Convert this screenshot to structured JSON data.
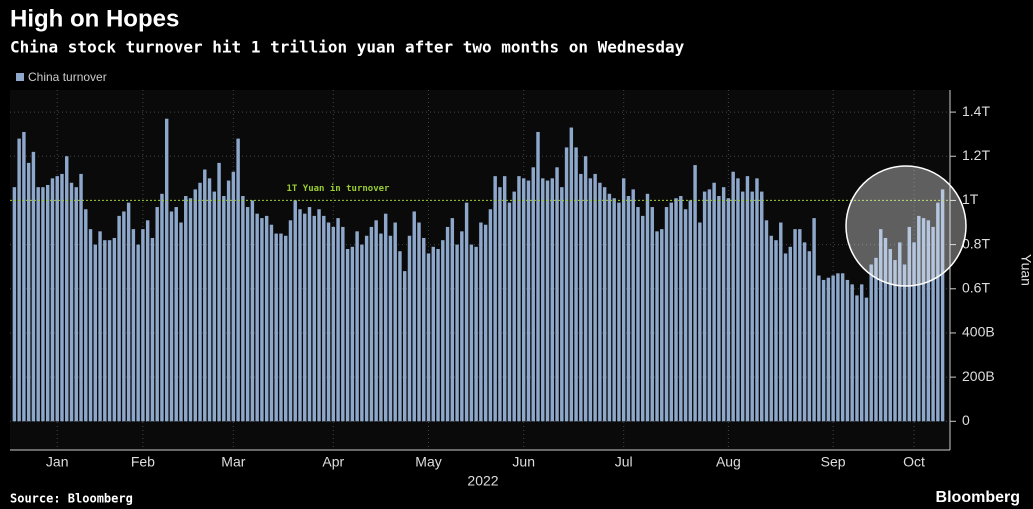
{
  "chart_data": {
    "type": "bar",
    "title": "High on Hopes",
    "subtitle": "China stock turnover hit 1 trillion yuan after two months on Wednesday",
    "source": "Source: Bloomberg",
    "brand": "Bloomberg",
    "x_label": "2022",
    "y_label": "Yuan",
    "series": [
      {
        "name": "China turnover",
        "color": "#8ea8cc",
        "values": [
          1.06,
          1.28,
          1.31,
          1.17,
          1.22,
          1.06,
          1.06,
          1.07,
          1.1,
          1.11,
          1.12,
          1.2,
          1.08,
          1.06,
          1.12,
          0.96,
          0.87,
          0.8,
          0.86,
          0.82,
          0.82,
          0.83,
          0.93,
          0.95,
          0.99,
          0.87,
          0.8,
          0.87,
          0.91,
          0.83,
          0.97,
          1.03,
          1.37,
          0.95,
          0.97,
          0.9,
          1.02,
          1.01,
          1.05,
          1.08,
          1.14,
          1.1,
          1.04,
          1.17,
          1.02,
          1.09,
          1.13,
          1.28,
          1.02,
          0.97,
          1.0,
          0.94,
          0.92,
          0.93,
          0.89,
          0.85,
          0.85,
          0.84,
          0.91,
          1.0,
          0.96,
          0.94,
          0.97,
          0.93,
          0.96,
          0.93,
          0.9,
          0.88,
          0.92,
          0.88,
          0.78,
          0.79,
          0.86,
          0.8,
          0.84,
          0.88,
          0.91,
          0.85,
          0.94,
          0.84,
          0.9,
          0.77,
          0.68,
          0.84,
          0.95,
          0.9,
          0.83,
          0.76,
          0.79,
          0.78,
          0.82,
          0.88,
          0.92,
          0.8,
          0.86,
          0.99,
          0.8,
          0.79,
          0.9,
          0.89,
          0.96,
          1.11,
          1.06,
          1.11,
          0.99,
          1.04,
          1.11,
          1.1,
          1.09,
          1.15,
          1.31,
          1.1,
          1.09,
          1.1,
          1.15,
          1.06,
          1.24,
          1.33,
          1.24,
          1.12,
          1.2,
          1.1,
          1.12,
          1.08,
          1.06,
          1.03,
          1.01,
          0.99,
          1.1,
          1.02,
          1.05,
          0.97,
          0.93,
          1.03,
          0.97,
          0.86,
          0.87,
          0.97,
          0.99,
          1.01,
          1.02,
          0.96,
          1.0,
          1.16,
          0.9,
          1.04,
          1.05,
          1.08,
          1.02,
          1.06,
          1.01,
          1.13,
          1.1,
          1.04,
          1.11,
          1.04,
          1.1,
          1.04,
          0.91,
          0.84,
          0.82,
          0.9,
          0.76,
          0.79,
          0.87,
          0.87,
          0.81,
          0.77,
          0.92,
          0.66,
          0.64,
          0.65,
          0.66,
          0.67,
          0.67,
          0.64,
          0.62,
          0.57,
          0.62,
          0.56,
          0.71,
          0.74,
          0.87,
          0.83,
          0.78,
          0.73,
          0.81,
          0.71,
          0.88,
          0.81,
          0.93,
          0.92,
          0.91,
          0.88,
          0.99,
          1.05
        ]
      }
    ],
    "categories": [
      null,
      null,
      null,
      null,
      null,
      null,
      null,
      null,
      null,
      "Jan",
      null,
      null,
      null,
      null,
      null,
      null,
      null,
      null,
      null,
      null,
      null,
      null,
      null,
      null,
      null,
      null,
      null,
      "Feb",
      null,
      null,
      null,
      null,
      null,
      null,
      null,
      null,
      null,
      null,
      null,
      null,
      null,
      null,
      null,
      null,
      null,
      null,
      "Mar",
      null,
      null,
      null,
      null,
      null,
      null,
      null,
      null,
      null,
      null,
      null,
      null,
      null,
      null,
      null,
      null,
      null,
      null,
      null,
      null,
      "Apr",
      null,
      null,
      null,
      null,
      null,
      null,
      null,
      null,
      null,
      null,
      null,
      null,
      null,
      null,
      null,
      null,
      null,
      null,
      null,
      "May",
      null,
      null,
      null,
      null,
      null,
      null,
      null,
      null,
      null,
      null,
      null,
      null,
      null,
      null,
      null,
      null,
      null,
      null,
      null,
      "Jun",
      null,
      null,
      null,
      null,
      null,
      null,
      null,
      null,
      null,
      null,
      null,
      null,
      null,
      null,
      null,
      null,
      null,
      null,
      null,
      null,
      "Jul",
      null,
      null,
      null,
      null,
      null,
      null,
      null,
      null,
      null,
      null,
      null,
      null,
      null,
      null,
      null,
      null,
      null,
      null,
      null,
      null,
      null,
      "Aug",
      null,
      null,
      null,
      null,
      null,
      null,
      null,
      null,
      null,
      null,
      null,
      null,
      null,
      null,
      null,
      null,
      null,
      null,
      null,
      null,
      null,
      "Sep",
      null,
      null,
      null,
      null,
      null,
      null,
      null,
      null,
      null,
      null,
      null,
      null,
      null,
      null,
      null,
      null,
      "Oct",
      null,
      null,
      null,
      null,
      null,
      null
    ],
    "ylim": [
      -0.13,
      1.5
    ],
    "yticks": [
      0,
      {
        "value": 0.2,
        "label": "200B"
      },
      {
        "value": 0.4,
        "label": "400B"
      },
      {
        "value": 0.6,
        "label": "0.6T"
      },
      {
        "value": 0.8,
        "label": "0.8T"
      },
      {
        "value": 1,
        "label": "1T"
      },
      {
        "value": 1.2,
        "label": "1.2T"
      },
      {
        "value": 1.4,
        "label": "1.4T"
      }
    ],
    "grid": true,
    "reference": {
      "value": 1,
      "label": "1T Yuan in turnover",
      "color": "#9acd32"
    }
  }
}
